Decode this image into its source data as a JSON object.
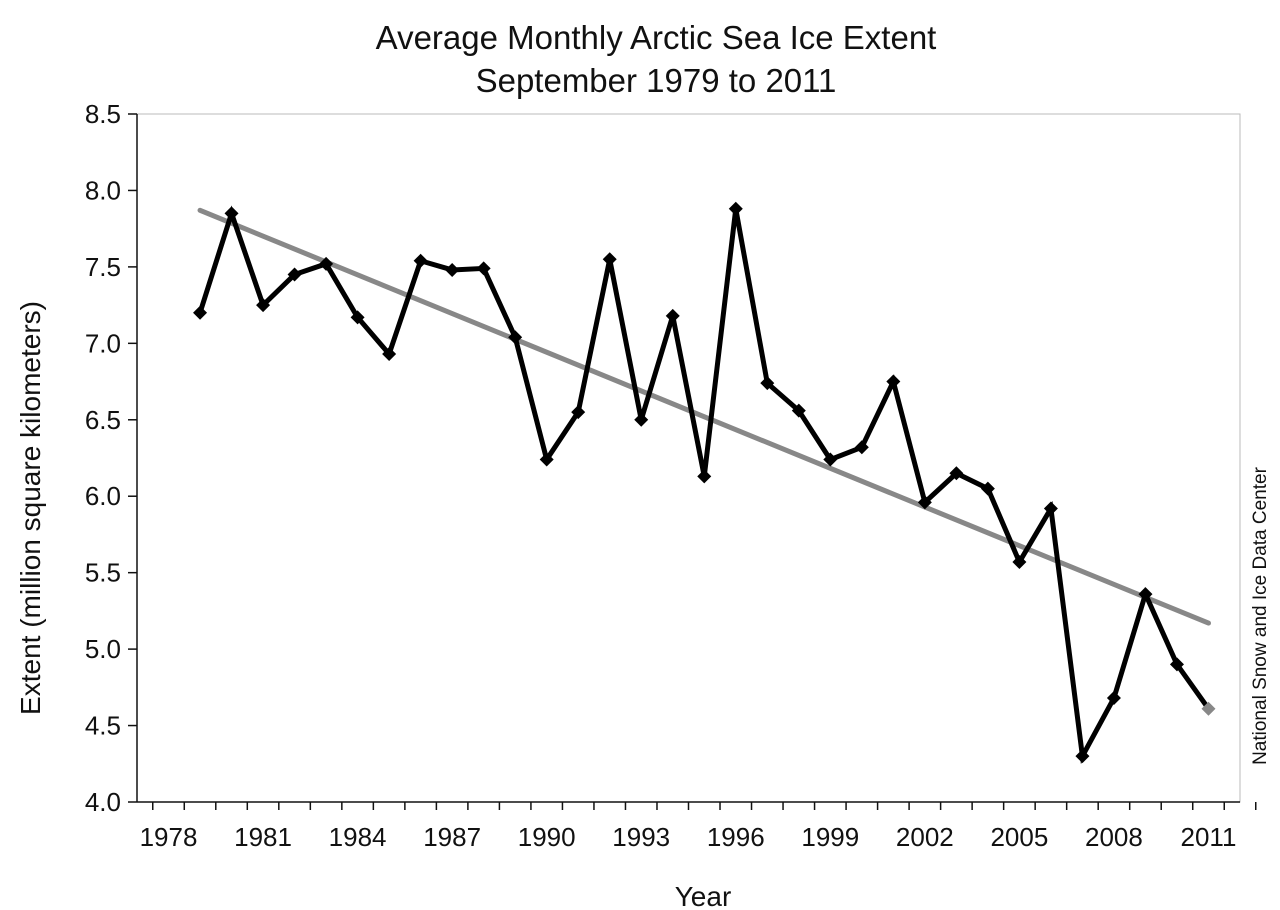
{
  "chart_data": {
    "type": "line",
    "title": "Average Monthly Arctic Sea Ice Extent",
    "subtitle": "September 1979 to 2011",
    "xlabel": "Year",
    "ylabel": "Extent (million square kilometers)",
    "credit": "National Snow and Ice Data Center",
    "xlim": [
      1977,
      2012
    ],
    "ylim": [
      4.0,
      8.5
    ],
    "x_ticks": [
      1978,
      1981,
      1984,
      1987,
      1990,
      1993,
      1996,
      1999,
      2002,
      2005,
      2008,
      2011
    ],
    "y_ticks": [
      "4.0",
      "4.5",
      "5.0",
      "5.5",
      "6.0",
      "6.5",
      "7.0",
      "7.5",
      "8.0",
      "8.5"
    ],
    "grid": false,
    "legend": "none",
    "series": [
      {
        "x": [
          1979,
          1980,
          1981,
          1982,
          1983,
          1984,
          1985,
          1986,
          1987,
          1988,
          1989,
          1990,
          1991,
          1992,
          1993,
          1994,
          1995,
          1996,
          1997,
          1998,
          1999,
          2000,
          2001,
          2002,
          2003,
          2004,
          2005,
          2006,
          2007,
          2008,
          2009,
          2010,
          2011
        ],
        "values": [
          7.2,
          7.85,
          7.25,
          7.45,
          7.52,
          7.17,
          6.93,
          7.54,
          7.48,
          7.49,
          7.04,
          6.24,
          6.55,
          7.55,
          6.5,
          7.18,
          6.13,
          7.88,
          6.74,
          6.56,
          6.24,
          6.32,
          6.75,
          5.96,
          6.15,
          6.05,
          5.57,
          5.92,
          4.3,
          4.68,
          5.36,
          4.9,
          4.61
        ],
        "color": "#000000",
        "marker": "diamond"
      },
      {
        "x": [
          1979,
          2011
        ],
        "values": [
          7.87,
          5.17
        ],
        "color": "#888888",
        "style": "trend line"
      }
    ],
    "highlight": {
      "x": 2011,
      "value": 4.61,
      "color": "#888888"
    },
    "colors": {
      "data_line": "#000000",
      "trend_line": "#888888",
      "axes": "#111111",
      "frame": "#bbbbbb"
    }
  }
}
